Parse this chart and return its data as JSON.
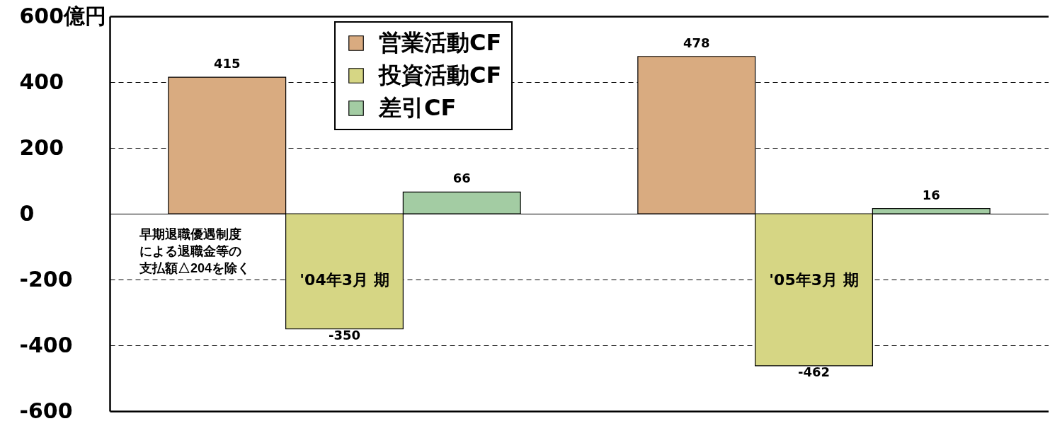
{
  "chart_data": {
    "type": "bar",
    "categories": [
      "'04年3月 期",
      "'05年3月 期"
    ],
    "series": [
      {
        "name": "営業活動CF",
        "color": "#d9ab80",
        "values": [
          415,
          478
        ]
      },
      {
        "name": "投資活動CF",
        "color": "#d6d684",
        "values": [
          -350,
          -462
        ]
      },
      {
        "name": "差引CF",
        "color": "#a3cca3",
        "values": [
          66,
          16
        ]
      }
    ],
    "ylim": [
      -600,
      600
    ],
    "yticks": [
      -600,
      -400,
      -200,
      0,
      200,
      400,
      {
        "value": 600,
        "label": "600億円"
      }
    ],
    "grid": "y",
    "legend": "top",
    "data_labels": true,
    "annotations": [
      "早期退職優遇制度による退職金等の支払額△204を除く"
    ]
  }
}
